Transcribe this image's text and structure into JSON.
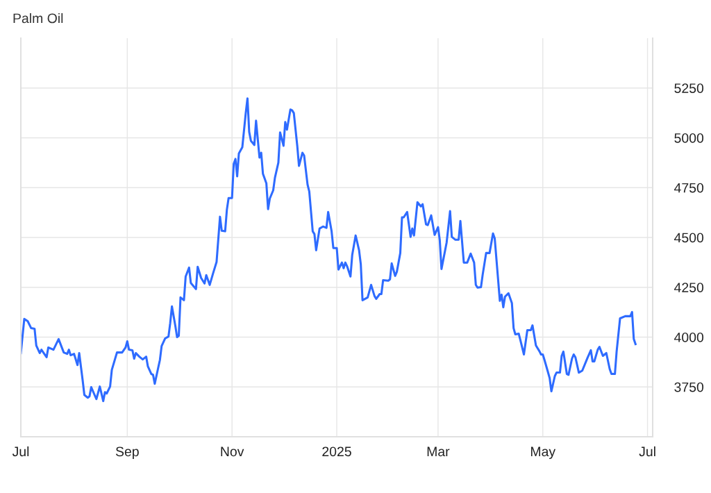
{
  "chart_data": {
    "type": "line",
    "title": "Palm Oil",
    "x": [
      "2024-07-01",
      "2024-07-03",
      "2024-07-05",
      "2024-07-07",
      "2024-07-09",
      "2024-07-10",
      "2024-07-12",
      "2024-07-13",
      "2024-07-16",
      "2024-07-17",
      "2024-07-20",
      "2024-07-23",
      "2024-07-26",
      "2024-07-28",
      "2024-07-29",
      "2024-07-30",
      "2024-08-01",
      "2024-08-03",
      "2024-08-04",
      "2024-08-06",
      "2024-08-07",
      "2024-08-09",
      "2024-08-10",
      "2024-08-11",
      "2024-08-14",
      "2024-08-16",
      "2024-08-18",
      "2024-08-19",
      "2024-08-20",
      "2024-08-22",
      "2024-08-23",
      "2024-08-26",
      "2024-08-29",
      "2024-08-31",
      "2024-09-01",
      "2024-09-02",
      "2024-09-04",
      "2024-09-05",
      "2024-09-06",
      "2024-09-08",
      "2024-09-10",
      "2024-09-12",
      "2024-09-13",
      "2024-09-15",
      "2024-09-16",
      "2024-09-17",
      "2024-09-19",
      "2024-09-20",
      "2024-09-21",
      "2024-09-23",
      "2024-09-25",
      "2024-09-26",
      "2024-09-27",
      "2024-09-29",
      "2024-09-30",
      "2024-10-01",
      "2024-10-02",
      "2024-10-04",
      "2024-10-05",
      "2024-10-07",
      "2024-10-08",
      "2024-10-11",
      "2024-10-12",
      "2024-10-14",
      "2024-10-16",
      "2024-10-17",
      "2024-10-19",
      "2024-10-21",
      "2024-10-23",
      "2024-10-25",
      "2024-10-26",
      "2024-10-28",
      "2024-10-29",
      "2024-10-30",
      "2024-11-01",
      "2024-11-02",
      "2024-11-03",
      "2024-11-04",
      "2024-11-05",
      "2024-11-07",
      "2024-11-09",
      "2024-11-10",
      "2024-11-11",
      "2024-11-12",
      "2024-11-14",
      "2024-11-15",
      "2024-11-17",
      "2024-11-18",
      "2024-11-19",
      "2024-11-21",
      "2024-11-22",
      "2024-11-23",
      "2024-11-25",
      "2024-11-26",
      "2024-11-28",
      "2024-11-29",
      "2024-12-01",
      "2024-12-02",
      "2024-12-03",
      "2024-12-05",
      "2024-12-06",
      "2024-12-07",
      "2024-12-09",
      "2024-12-10",
      "2024-12-12",
      "2024-12-13",
      "2024-12-15",
      "2024-12-16",
      "2024-12-18",
      "2024-12-19",
      "2024-12-20",
      "2024-12-22",
      "2024-12-24",
      "2024-12-25",
      "2024-12-26",
      "2024-12-27",
      "2024-12-29",
      "2024-12-30",
      "2025-01-01",
      "2025-01-02",
      "2025-01-04",
      "2025-01-05",
      "2025-01-06",
      "2025-01-07",
      "2025-01-09",
      "2025-01-10",
      "2025-01-12",
      "2025-01-14",
      "2025-01-15",
      "2025-01-16",
      "2025-01-19",
      "2025-01-21",
      "2025-01-23",
      "2025-01-24",
      "2025-01-26",
      "2025-01-27",
      "2025-01-28",
      "2025-01-31",
      "2025-02-01",
      "2025-02-02",
      "2025-02-04",
      "2025-02-05",
      "2025-02-07",
      "2025-02-08",
      "2025-02-09",
      "2025-02-11",
      "2025-02-13",
      "2025-02-14",
      "2025-02-15",
      "2025-02-17",
      "2025-02-19",
      "2025-02-20",
      "2025-02-22",
      "2025-02-23",
      "2025-02-25",
      "2025-02-27",
      "2025-03-01",
      "2025-03-02",
      "2025-03-03",
      "2025-03-06",
      "2025-03-08",
      "2025-03-09",
      "2025-03-11",
      "2025-03-13",
      "2025-03-14",
      "2025-03-16",
      "2025-03-18",
      "2025-03-20",
      "2025-03-22",
      "2025-03-23",
      "2025-03-24",
      "2025-03-26",
      "2025-03-27",
      "2025-03-29",
      "2025-03-31",
      "2025-04-02",
      "2025-04-03",
      "2025-04-06",
      "2025-04-07",
      "2025-04-08",
      "2025-04-09",
      "2025-04-11",
      "2025-04-13",
      "2025-04-14",
      "2025-04-15",
      "2025-04-17",
      "2025-04-18",
      "2025-04-20",
      "2025-04-22",
      "2025-04-24",
      "2025-04-25",
      "2025-04-27",
      "2025-04-29",
      "2025-04-30",
      "2025-05-01",
      "2025-05-02",
      "2025-05-04",
      "2025-05-05",
      "2025-05-06",
      "2025-05-08",
      "2025-05-09",
      "2025-05-11",
      "2025-05-12",
      "2025-05-13",
      "2025-05-15",
      "2025-05-16",
      "2025-05-18",
      "2025-05-19",
      "2025-05-20",
      "2025-05-22",
      "2025-05-24",
      "2025-05-27",
      "2025-05-29",
      "2025-05-30",
      "2025-05-31",
      "2025-06-02",
      "2025-06-03",
      "2025-06-05",
      "2025-06-07",
      "2025-06-09",
      "2025-06-10",
      "2025-06-12",
      "2025-06-13",
      "2025-06-15",
      "2025-06-18",
      "2025-06-21",
      "2025-06-22",
      "2025-06-23",
      "2025-06-24"
    ],
    "series": [
      {
        "color": "#2e6bff",
        "values": [
          3920,
          4091,
          4080,
          4045,
          4042,
          3958,
          3920,
          3937,
          3899,
          3948,
          3937,
          3990,
          3923,
          3916,
          3937,
          3909,
          3916,
          3860,
          3920,
          3784,
          3710,
          3696,
          3703,
          3749,
          3689,
          3752,
          3679,
          3724,
          3717,
          3752,
          3836,
          3923,
          3923,
          3948,
          3979,
          3937,
          3934,
          3892,
          3920,
          3902,
          3888,
          3902,
          3853,
          3815,
          3811,
          3766,
          3846,
          3885,
          3955,
          3993,
          4003,
          4070,
          4154,
          4056,
          4000,
          4007,
          4199,
          4185,
          4304,
          4349,
          4272,
          4241,
          4353,
          4297,
          4269,
          4311,
          4262,
          4321,
          4377,
          4604,
          4534,
          4531,
          4639,
          4698,
          4698,
          4869,
          4894,
          4807,
          4922,
          4953,
          5124,
          5198,
          5030,
          4985,
          4964,
          5086,
          4901,
          4925,
          4820,
          4772,
          4642,
          4695,
          4737,
          4800,
          4876,
          5027,
          4960,
          5079,
          5041,
          5142,
          5138,
          5124,
          4960,
          4859,
          4925,
          4911,
          4765,
          4730,
          4531,
          4517,
          4436,
          4545,
          4555,
          4552,
          4548,
          4628,
          4531,
          4447,
          4447,
          4339,
          4374,
          4346,
          4374,
          4356,
          4304,
          4412,
          4510,
          4436,
          4366,
          4185,
          4199,
          4262,
          4206,
          4192,
          4216,
          4216,
          4286,
          4283,
          4290,
          4370,
          4307,
          4328,
          4422,
          4601,
          4601,
          4628,
          4503,
          4545,
          4510,
          4677,
          4656,
          4667,
          4566,
          4562,
          4611,
          4513,
          4552,
          4486,
          4342,
          4475,
          4632,
          4503,
          4489,
          4489,
          4583,
          4374,
          4374,
          4419,
          4374,
          4262,
          4248,
          4251,
          4314,
          4422,
          4422,
          4520,
          4496,
          4182,
          4213,
          4150,
          4203,
          4220,
          4171,
          4045,
          4014,
          4017,
          3983,
          3913,
          4035,
          4035,
          4059,
          3958,
          3930,
          3913,
          3913,
          3885,
          3825,
          3794,
          3728,
          3804,
          3822,
          3822,
          3906,
          3927,
          3815,
          3811,
          3892,
          3913,
          3899,
          3822,
          3832,
          3895,
          3934,
          3878,
          3878,
          3937,
          3951,
          3906,
          3920,
          3839,
          3815,
          3815,
          3927,
          4094,
          4105,
          4105,
          4126,
          3990,
          3965
        ]
      }
    ],
    "xlim": [
      "2024-07-01",
      "2025-07-04"
    ],
    "xticks": [
      {
        "value": "2024-07-01",
        "label": "Jul"
      },
      {
        "value": "2024-09-01",
        "label": "Sep"
      },
      {
        "value": "2024-11-01",
        "label": "Nov"
      },
      {
        "value": "2025-01-01",
        "label": "2025"
      },
      {
        "value": "2025-03-01",
        "label": "Mar"
      },
      {
        "value": "2025-05-01",
        "label": "May"
      },
      {
        "value": "2025-07-01",
        "label": "Jul"
      }
    ],
    "ylim": [
      3500,
      5500
    ],
    "yticks": [
      3750,
      4000,
      4250,
      4500,
      4750,
      5000,
      5250
    ],
    "grid": true,
    "line_style": "solid",
    "marker": "none"
  }
}
